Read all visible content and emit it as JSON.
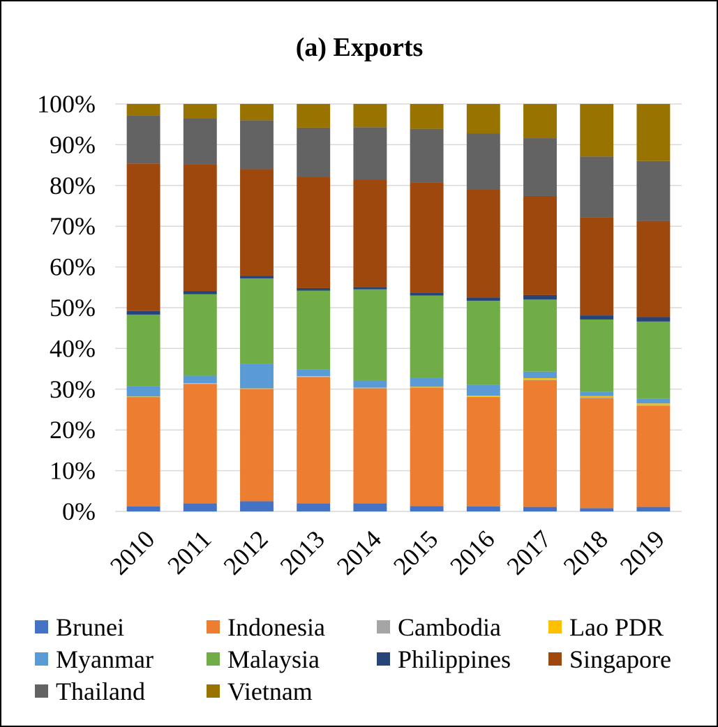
{
  "chart_data": {
    "type": "bar",
    "stacked": true,
    "percent_stacked": true,
    "title": "(a) Exports",
    "xlabel": "",
    "ylabel": "",
    "ylim": [
      0,
      100
    ],
    "y_ticks": [
      "0%",
      "10%",
      "20%",
      "30%",
      "40%",
      "50%",
      "60%",
      "70%",
      "80%",
      "90%",
      "100%"
    ],
    "grid": true,
    "legend_position": "bottom",
    "categories": [
      "2010",
      "2011",
      "2012",
      "2013",
      "2014",
      "2015",
      "2016",
      "2017",
      "2018",
      "2019"
    ],
    "series": [
      {
        "name": "Brunei",
        "color": "#4472c4",
        "values": [
          1.2,
          2.0,
          2.5,
          2.0,
          2.0,
          1.3,
          1.2,
          1.1,
          0.8,
          1.1
        ]
      },
      {
        "name": "Indonesia",
        "color": "#ed7d31",
        "values": [
          26.8,
          29.3,
          27.5,
          31.0,
          28.2,
          29.0,
          26.8,
          31.1,
          27.0,
          24.8
        ]
      },
      {
        "name": "Cambodia",
        "color": "#a5a5a5",
        "values": [
          0.1,
          0.1,
          0.1,
          0.1,
          0.1,
          0.1,
          0.1,
          0.1,
          0.2,
          0.2
        ]
      },
      {
        "name": "Lao PDR",
        "color": "#ffc000",
        "values": [
          0.1,
          0.1,
          0.1,
          0.1,
          0.1,
          0.2,
          0.3,
          0.4,
          0.3,
          0.4
        ]
      },
      {
        "name": "Myanmar",
        "color": "#5b9bd5",
        "values": [
          2.6,
          1.8,
          6.0,
          1.7,
          1.8,
          2.2,
          2.7,
          1.6,
          1.1,
          1.1
        ]
      },
      {
        "name": "Malaysia",
        "color": "#70ad47",
        "values": [
          17.5,
          20.0,
          21.0,
          19.3,
          22.3,
          20.2,
          20.6,
          17.7,
          17.7,
          19.0
        ]
      },
      {
        "name": "Philippines",
        "color": "#264478",
        "values": [
          0.9,
          0.8,
          0.6,
          0.6,
          0.6,
          0.6,
          0.8,
          1.1,
          1.0,
          1.1
        ]
      },
      {
        "name": "Singapore",
        "color": "#9e480e",
        "values": [
          36.2,
          31.1,
          26.2,
          27.3,
          26.4,
          27.2,
          26.6,
          24.3,
          24.0,
          23.6
        ]
      },
      {
        "name": "Thailand",
        "color": "#636363",
        "values": [
          11.7,
          11.3,
          12.0,
          12.1,
          12.8,
          13.1,
          13.7,
          14.2,
          15.0,
          14.7
        ]
      },
      {
        "name": "Vietnam",
        "color": "#997300",
        "values": [
          2.9,
          3.5,
          4.0,
          5.8,
          5.7,
          6.1,
          7.2,
          8.4,
          12.9,
          14.0
        ]
      }
    ]
  }
}
